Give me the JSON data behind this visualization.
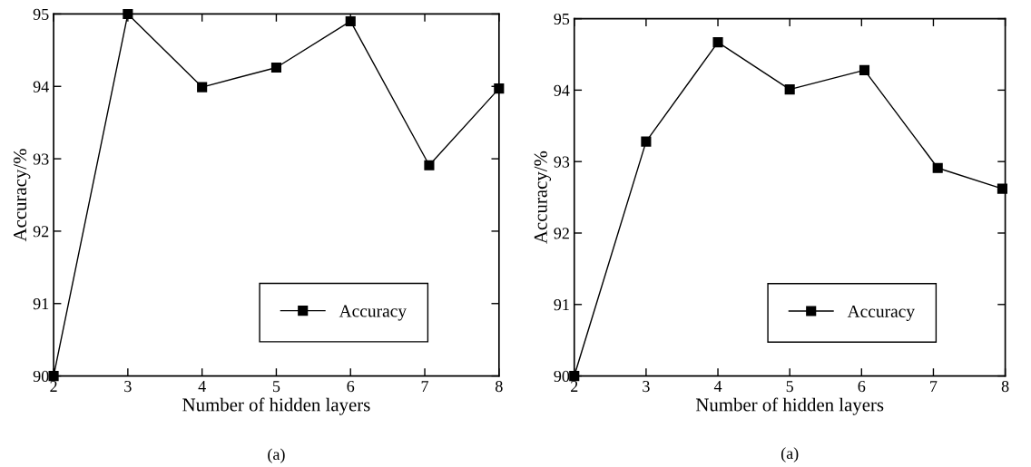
{
  "chart_data": [
    {
      "type": "line",
      "xlabel": "Number of hidden layers",
      "ylabel": "Accuracy/%",
      "annotations": [
        "(a)"
      ],
      "xlim": [
        2,
        8
      ],
      "xticks": [
        2,
        3,
        4,
        5,
        6,
        7,
        8
      ],
      "ylim": [
        90,
        95
      ],
      "yticks": [
        90,
        91,
        92,
        93,
        94,
        95
      ],
      "legend": "bottom right",
      "marker": "square",
      "line_style": "solid",
      "grid": false,
      "series": [
        {
          "name": "Accuracy",
          "color": "#000000",
          "x": [
            2,
            3,
            4,
            5,
            6,
            7.06,
            8
          ],
          "values": [
            90.0,
            95.0,
            93.99,
            94.26,
            94.9,
            92.91,
            93.97
          ]
        }
      ]
    },
    {
      "type": "line",
      "xlabel": "Number of hidden layers",
      "ylabel": "Accuracy/%",
      "annotations": [
        "(a)"
      ],
      "xlim": [
        2,
        8
      ],
      "xticks": [
        2,
        3,
        4,
        5,
        6,
        7,
        8
      ],
      "ylim": [
        90,
        95
      ],
      "yticks": [
        90,
        91,
        92,
        93,
        94,
        95
      ],
      "legend": "bottom right",
      "marker": "square",
      "line_style": "solid",
      "grid": false,
      "series": [
        {
          "name": "Accuracy",
          "color": "#000000",
          "x": [
            2,
            3,
            4,
            5,
            6.04,
            7.06,
            7.96
          ],
          "values": [
            90.0,
            93.28,
            94.67,
            94.01,
            94.28,
            92.91,
            92.62
          ]
        }
      ]
    }
  ]
}
